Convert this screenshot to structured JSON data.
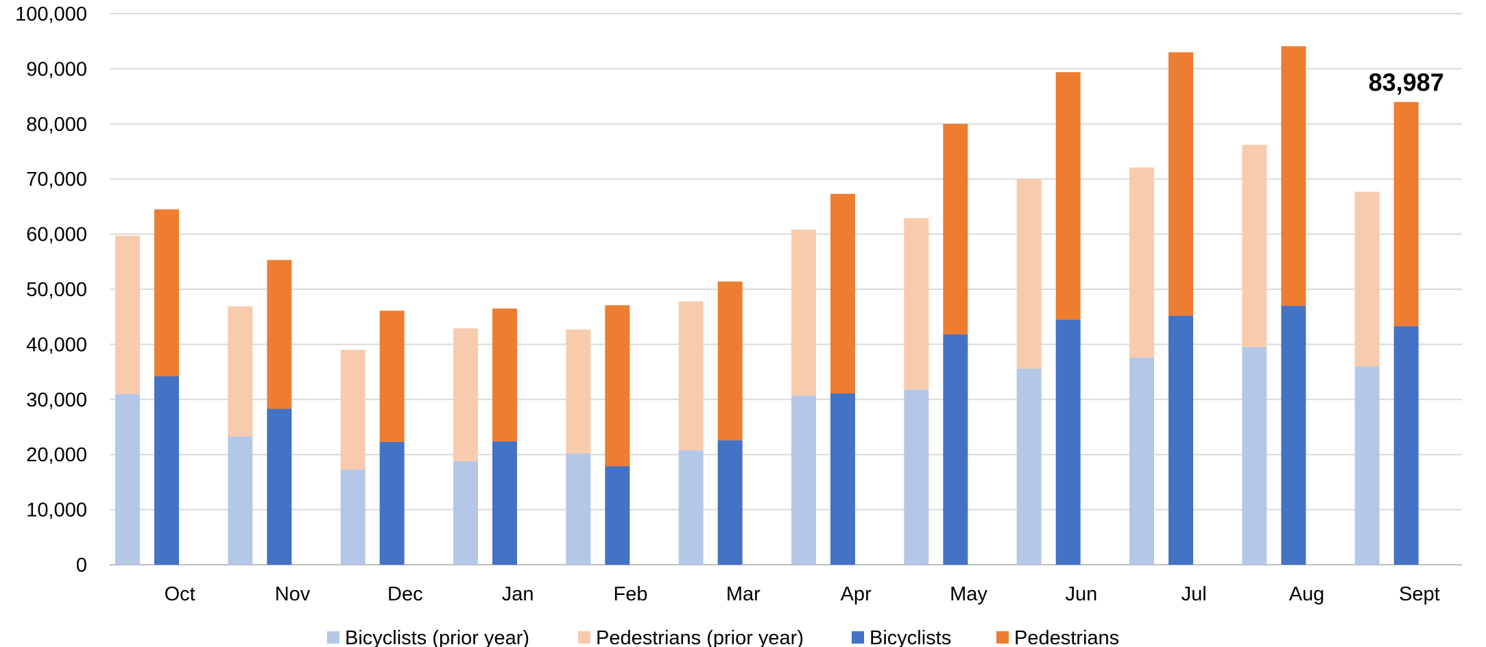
{
  "chart_data": {
    "type": "bar",
    "stacked": true,
    "title": "",
    "xlabel": "",
    "ylabel": "",
    "categories": [
      "Oct",
      "Nov",
      "Dec",
      "Jan",
      "Feb",
      "Mar",
      "Apr",
      "May",
      "Jun",
      "Jul",
      "Aug",
      "Sept"
    ],
    "ylim": [
      0,
      100000
    ],
    "y_ticks": [
      "0",
      "10,000",
      "20,000",
      "30,000",
      "40,000",
      "50,000",
      "60,000",
      "70,000",
      "80,000",
      "90,000",
      "100,000"
    ],
    "grid": true,
    "legend_position": "bottom",
    "groups": [
      {
        "stack": "prior year",
        "series": [
          {
            "name": "Bicyclists (prior year)",
            "color": "#B4C7E7",
            "values": [
              31000,
              23300,
              17300,
              18800,
              20200,
              20800,
              30700,
              31800,
              35600,
              37600,
              39500,
              36000
            ]
          },
          {
            "name": "Pedestrians (prior year)",
            "color": "#F8CBAD",
            "values": [
              28700,
              23600,
              21700,
              24100,
              22500,
              27000,
              30100,
              31100,
              34400,
              34500,
              36700,
              31700
            ]
          }
        ]
      },
      {
        "stack": "current year",
        "series": [
          {
            "name": "Bicyclists",
            "color": "#4472C4",
            "values": [
              34200,
              28300,
              22300,
              22400,
              17900,
              22600,
              31100,
              41800,
              44500,
              45200,
              47000,
              43300
            ]
          },
          {
            "name": "Pedestrians",
            "color": "#ED7D31",
            "values": [
              30300,
              27000,
              23800,
              24100,
              29200,
              28800,
              36200,
              38200,
              44900,
              47800,
              47100,
              40687
            ]
          }
        ]
      }
    ],
    "annotations": [
      {
        "category": "Sept",
        "stack": "current year",
        "text": "83,987",
        "value": 83987
      }
    ]
  }
}
